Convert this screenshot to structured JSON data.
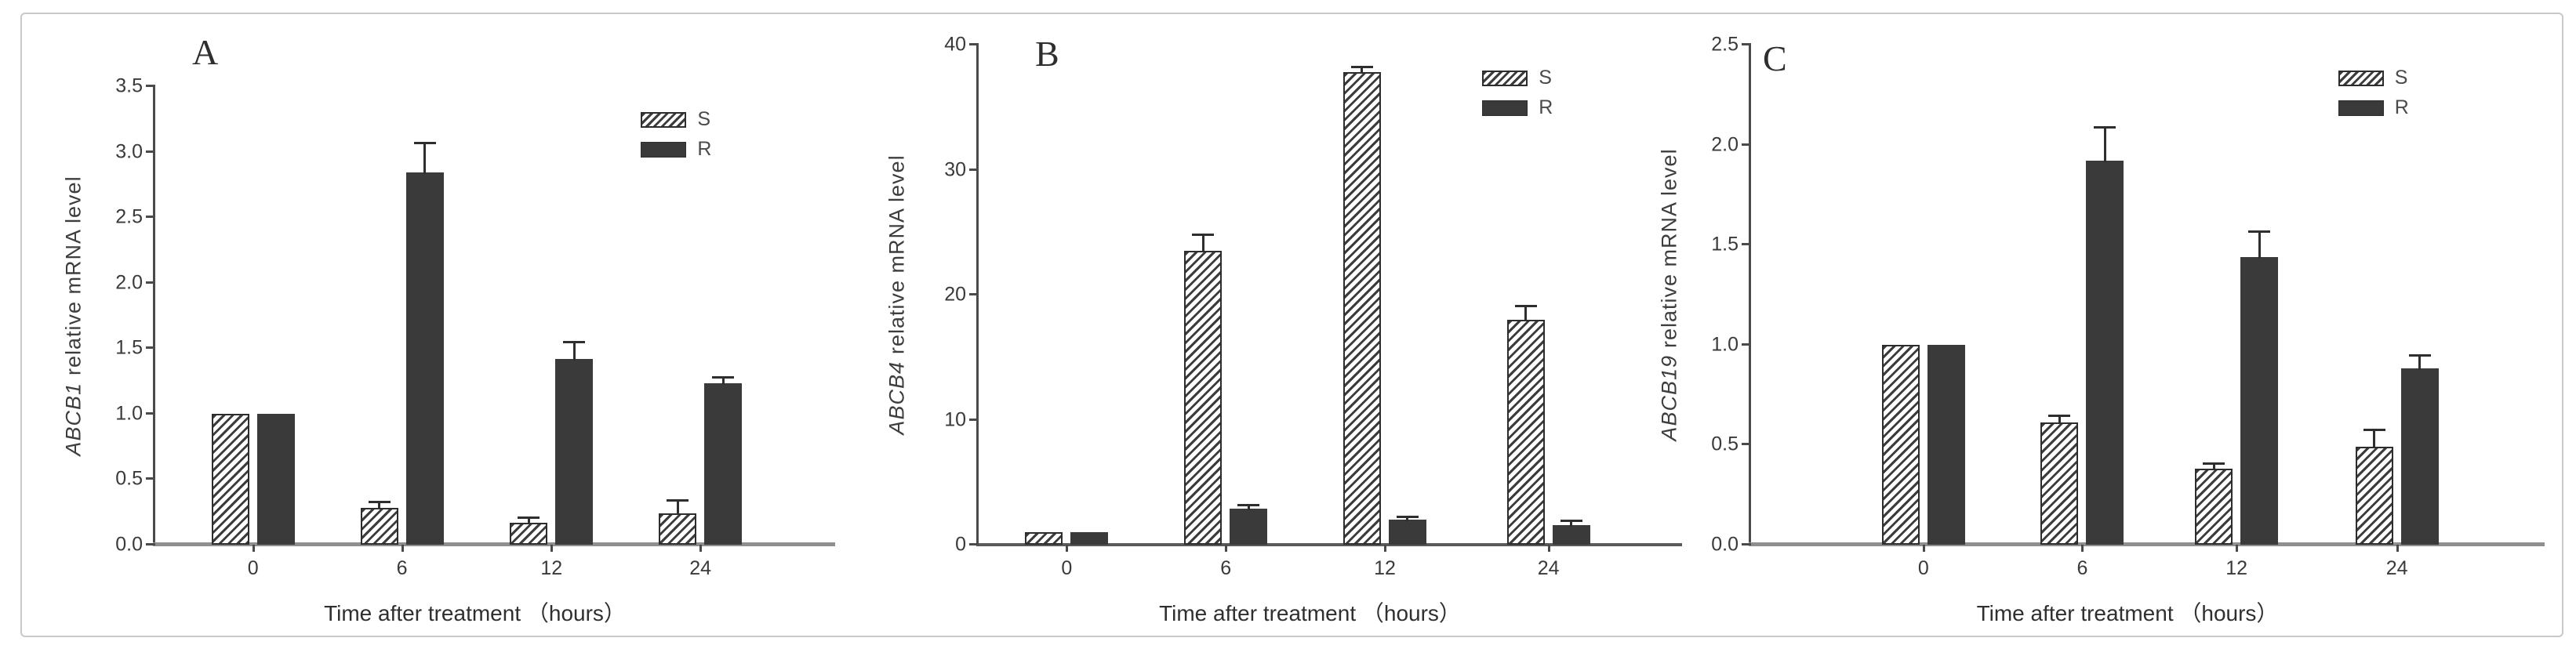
{
  "colors": {
    "bar_solid": "#3a3a3a",
    "hatch_line": "#3c3c3c",
    "axis": "#4a4a4a",
    "baseline": "#8f8f8f",
    "text": "#3d3d3d",
    "figure_border": "#c9c9c9"
  },
  "chart_data": [
    {
      "type": "bar",
      "panel": "A",
      "gene": "ABCB1",
      "ylabel_rest": "relative mRNA level",
      "xlabel": "Time after treatment （hours）",
      "categories": [
        "0",
        "6",
        "12",
        "24"
      ],
      "series": [
        {
          "name": "S",
          "style": "hatched",
          "values": [
            1.0,
            0.28,
            0.17,
            0.24
          ],
          "errors": [
            0,
            0.04,
            0.03,
            0.09
          ]
        },
        {
          "name": "R",
          "style": "solid",
          "values": [
            1.0,
            2.84,
            1.42,
            1.23
          ],
          "errors": [
            0,
            0.22,
            0.12,
            0.04
          ]
        }
      ],
      "ylim": [
        0,
        3.5
      ],
      "yticks": [
        "0.0",
        "0.5",
        "1.0",
        "1.5",
        "2.0",
        "2.5",
        "3.0",
        "3.5"
      ],
      "grid": false,
      "legend_position": "top-right"
    },
    {
      "type": "bar",
      "panel": "B",
      "gene": "ABCB4",
      "ylabel_rest": "relative mRNA level",
      "xlabel": "Time after treatment （hours）",
      "categories": [
        "0",
        "6",
        "12",
        "24"
      ],
      "series": [
        {
          "name": "S",
          "style": "hatched",
          "values": [
            1.0,
            23.5,
            37.8,
            18.0
          ],
          "errors": [
            0,
            1.2,
            0.3,
            1.0
          ]
        },
        {
          "name": "R",
          "style": "solid",
          "values": [
            1.0,
            2.9,
            2.0,
            1.55
          ],
          "errors": [
            0,
            0.2,
            0.15,
            0.3
          ]
        }
      ],
      "ylim": [
        0,
        40
      ],
      "yticks": [
        "0",
        "10",
        "20",
        "30",
        "40"
      ],
      "grid": false,
      "legend_position": "top-right"
    },
    {
      "type": "bar",
      "panel": "C",
      "gene": "ABCB19",
      "ylabel_rest": "relative mRNA level",
      "xlabel": "Time after treatment （hours）",
      "categories": [
        "0",
        "6",
        "12",
        "24"
      ],
      "series": [
        {
          "name": "S",
          "style": "hatched",
          "values": [
            1.0,
            0.61,
            0.38,
            0.49
          ],
          "errors": [
            0,
            0.03,
            0.02,
            0.08
          ]
        },
        {
          "name": "R",
          "style": "solid",
          "values": [
            1.0,
            1.92,
            1.44,
            0.88
          ],
          "errors": [
            0,
            0.16,
            0.12,
            0.06
          ]
        }
      ],
      "ylim": [
        0,
        2.5
      ],
      "yticks": [
        "0.0",
        "0.5",
        "1.0",
        "1.5",
        "2.0",
        "2.5"
      ],
      "grid": false,
      "legend_position": "top-right"
    }
  ]
}
